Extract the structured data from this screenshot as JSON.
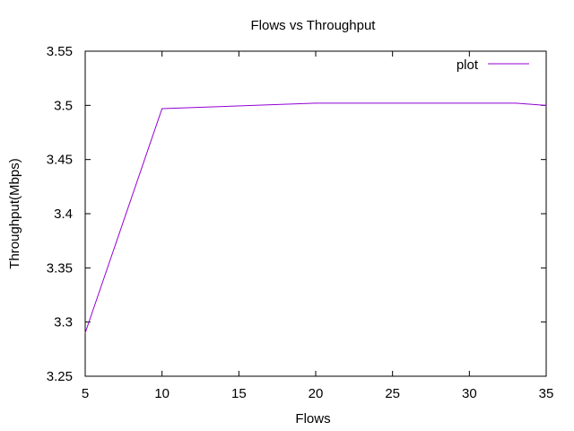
{
  "chart_data": {
    "type": "line",
    "title": "Flows vs Throughput",
    "xlabel": "Flows",
    "ylabel": "Throughput(Mbps)",
    "xlim": [
      5,
      35
    ],
    "ylim": [
      3.25,
      3.55
    ],
    "x_ticks": [
      "5",
      "10",
      "15",
      "20",
      "25",
      "30",
      "35"
    ],
    "y_ticks": [
      "3.25",
      "3.3",
      "3.35",
      "3.4",
      "3.45",
      "3.5",
      "3.55"
    ],
    "grid": false,
    "legend_position": "top-right",
    "series": [
      {
        "name": "plot",
        "color": "#9400d3",
        "x": [
          5,
          10,
          20,
          33,
          35
        ],
        "y": [
          3.29,
          3.497,
          3.502,
          3.502,
          3.5
        ]
      }
    ]
  }
}
